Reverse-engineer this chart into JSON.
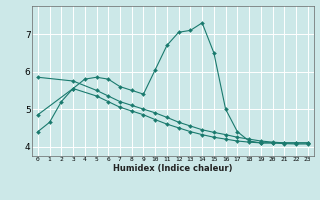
{
  "xlabel": "Humidex (Indice chaleur)",
  "xlim": [
    -0.5,
    23.5
  ],
  "ylim": [
    3.75,
    7.75
  ],
  "xticks": [
    0,
    1,
    2,
    3,
    4,
    5,
    6,
    7,
    8,
    9,
    10,
    11,
    12,
    13,
    14,
    15,
    16,
    17,
    18,
    19,
    20,
    21,
    22,
    23
  ],
  "yticks": [
    4,
    5,
    6,
    7
  ],
  "bg_color": "#cce8e8",
  "line_color": "#1a7a6e",
  "grid_color": "#ffffff",
  "lines": [
    {
      "x": [
        0,
        1,
        2,
        3,
        4,
        5,
        6,
        7,
        8,
        9,
        10,
        11,
        12,
        13,
        14,
        15,
        16,
        17,
        18,
        19,
        20,
        21,
        22,
        23
      ],
      "y": [
        4.4,
        4.65,
        5.2,
        5.55,
        5.8,
        5.85,
        5.8,
        5.6,
        5.5,
        5.4,
        6.05,
        6.7,
        7.05,
        7.1,
        7.3,
        6.5,
        5.0,
        4.4,
        4.15,
        4.1,
        4.1,
        4.1,
        4.1,
        4.1
      ]
    },
    {
      "x": [
        0,
        3,
        5,
        6,
        7,
        8,
        9,
        10,
        11,
        12,
        13,
        14,
        15,
        16,
        17,
        18,
        19,
        20,
        21,
        22,
        23
      ],
      "y": [
        5.85,
        5.75,
        5.5,
        5.35,
        5.2,
        5.1,
        5.0,
        4.9,
        4.78,
        4.65,
        4.55,
        4.45,
        4.38,
        4.32,
        4.25,
        4.2,
        4.15,
        4.12,
        4.1,
        4.1,
        4.1
      ]
    },
    {
      "x": [
        0,
        3,
        5,
        6,
        7,
        8,
        9,
        10,
        11,
        12,
        13,
        14,
        15,
        16,
        17,
        18,
        19,
        20,
        21,
        22,
        23
      ],
      "y": [
        4.85,
        5.55,
        5.35,
        5.2,
        5.05,
        4.95,
        4.85,
        4.72,
        4.6,
        4.5,
        4.4,
        4.32,
        4.25,
        4.2,
        4.15,
        4.12,
        4.1,
        4.1,
        4.08,
        4.07,
        4.07
      ]
    }
  ]
}
